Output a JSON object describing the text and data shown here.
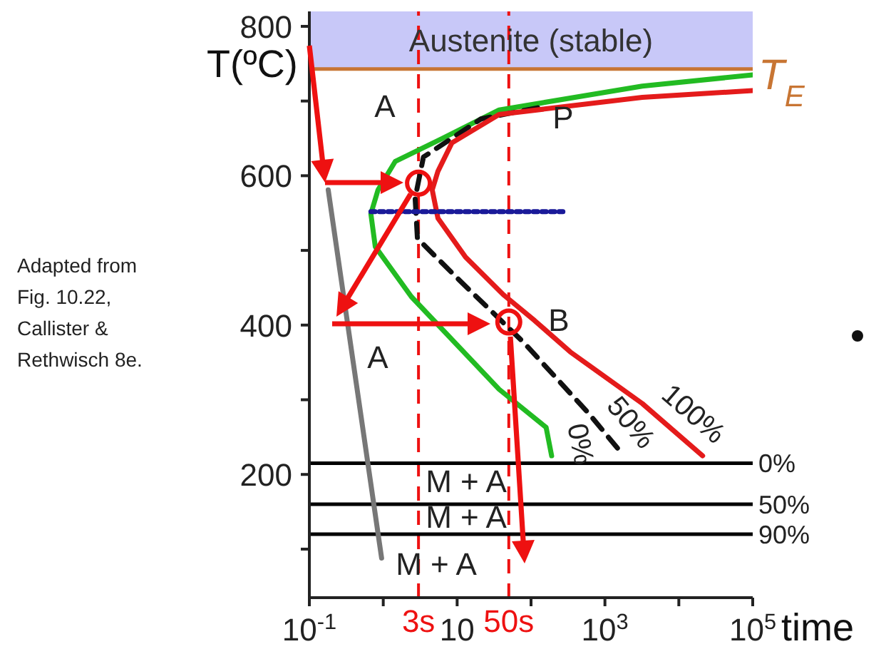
{
  "chart_data": {
    "type": "line",
    "ylabel": "T(ºC)",
    "xlabel": "time",
    "log": "x",
    "xlim": [
      0.1,
      100000
    ],
    "ylim": [
      35,
      820
    ],
    "xticks": [
      {
        "value": 0.1,
        "label": "10$^{-1}$"
      },
      {
        "value": 1,
        "label": null
      },
      10,
      {
        "value": 100,
        "label": null
      },
      {
        "value": 1000,
        "label": "10$^{3}$"
      },
      {
        "value": 10000,
        "label": null
      },
      {
        "value": 100000,
        "label": "10$^{5}$"
      }
    ],
    "yticks": [
      {
        "value": 100,
        "label": null
      },
      200,
      {
        "value": 300,
        "label": null
      },
      400,
      {
        "value": 500,
        "label": null
      },
      600,
      {
        "value": 700,
        "label": null
      },
      800
    ],
    "series": [
      {
        "name": "0%",
        "color": "#22bb22",
        "x": [
          100000,
          3200,
          37,
          6.3,
          1.45,
          0.85,
          0.68,
          0.78,
          2.4,
          37,
          160,
          190
        ],
        "values": [
          735,
          720,
          688,
          650,
          619,
          581,
          549,
          505,
          438,
          314,
          263,
          225
        ]
      },
      {
        "name": "50%",
        "color": "#111111",
        "line_style": "dashed",
        "x": [
          123,
          21,
          3.5,
          2.7,
          2.9,
          11,
          79,
          600,
          1800
        ],
        "values": [
          691,
          676,
          625,
          570,
          516,
          459,
          377,
          282,
          225
        ]
      },
      {
        "name": "100%",
        "color": "#e41b1b",
        "x": [
          100000,
          3200,
          37,
          8.5,
          5.5,
          4.6,
          5.5,
          13,
          43,
          112,
          340,
          3200,
          21000
        ],
        "values": [
          714,
          705,
          682,
          644,
          606,
          581,
          543,
          491,
          440,
          406,
          364,
          295,
          225
        ]
      },
      {
        "color": "#1a1a99",
        "line_style": "dotted",
        "x": [
          0.68,
          270
        ],
        "values": [
          552,
          552
        ]
      },
      {
        "color": "#777777",
        "x": [
          0.18,
          0.95
        ],
        "values": [
          581,
          88
        ]
      },
      {
        "type": "scatter",
        "color": "#ee1111",
        "marker": "circle",
        "x": [
          3,
          50
        ],
        "values": [
          590,
          404
        ]
      }
    ],
    "bands": [
      {
        "axis": "y",
        "from": 743,
        "to": 820,
        "label": "Austenite (stable)",
        "color": "#c8c8f8"
      }
    ],
    "ref_lines": [
      {
        "axis": "x",
        "value": 3,
        "label": "3s",
        "color": "#ee1111",
        "line_style": "dashed"
      },
      {
        "axis": "x",
        "value": 50,
        "label": "50s",
        "color": "#ee1111",
        "line_style": "dashed"
      },
      {
        "axis": "y",
        "value": 743,
        "label": "T$_{E}$",
        "color": "#c87533"
      },
      {
        "axis": "y",
        "value": 215,
        "color": "#000000"
      },
      {
        "axis": "y",
        "value": 160,
        "color": "#000000"
      },
      {
        "axis": "y",
        "value": 120,
        "color": "#000000"
      }
    ],
    "annotations": [
      "A",
      "P",
      "A",
      "B",
      "M + A",
      "M + A",
      "M + A",
      "Adapted from Fig. 10.22, Callister & Rethwisch 8e.",
      "0%",
      "50%",
      "90%"
    ]
  }
}
